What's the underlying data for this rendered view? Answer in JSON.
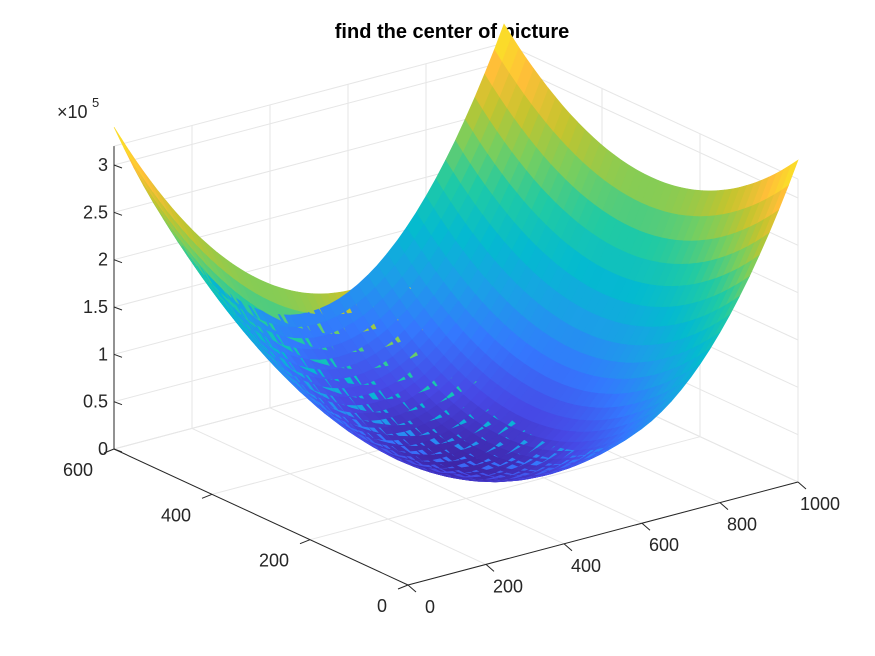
{
  "chart_data": {
    "type": "surface",
    "title": "find the center of picture",
    "xlabel": "",
    "ylabel": "",
    "zlabel": "",
    "x_range": [
      0,
      1000
    ],
    "y_range": [
      0,
      600
    ],
    "z_range": [
      0,
      320000
    ],
    "x_ticks": [
      0,
      200,
      400,
      600,
      800,
      1000
    ],
    "y_ticks": [
      0,
      200,
      400,
      600
    ],
    "z_ticks": [
      0,
      0.5,
      1,
      1.5,
      2,
      2.5,
      3
    ],
    "x_tick_labels": [
      "0",
      "200",
      "400",
      "600",
      "800",
      "1000"
    ],
    "y_tick_labels": [
      "0",
      "200",
      "400",
      "600"
    ],
    "z_tick_labels": [
      "0",
      "0.5",
      "1",
      "1.5",
      "2",
      "2.5",
      "3"
    ],
    "z_exponent_base": "×10",
    "z_exponent_power": "5",
    "grid": true,
    "colormap": "parula",
    "function": "z = (x - 500)^2 + (y - 300)^2",
    "center": {
      "x": 500,
      "y": 300
    },
    "x_extent": [
      0,
      1000
    ],
    "y_extent": [
      0,
      600
    ],
    "sample_step": 100,
    "corner_values": [
      {
        "x": 0,
        "y": 0,
        "z": 340000
      },
      {
        "x": 1000,
        "y": 0,
        "z": 340000
      },
      {
        "x": 0,
        "y": 600,
        "z": 340000
      },
      {
        "x": 1000,
        "y": 600,
        "z": 340000
      }
    ],
    "min_value": {
      "x": 500,
      "y": 300,
      "z": 0
    }
  }
}
